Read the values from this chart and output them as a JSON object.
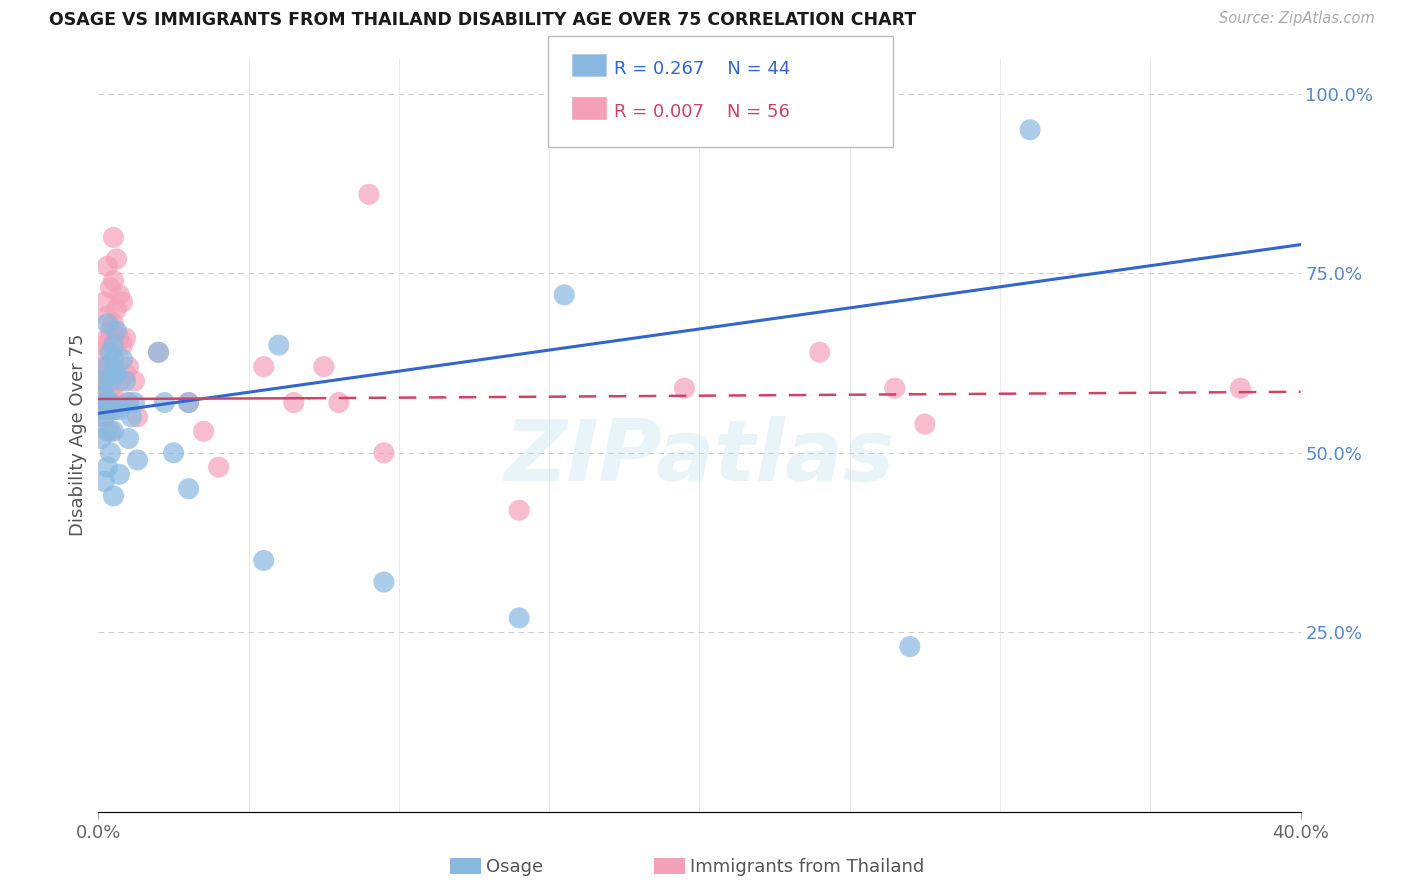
{
  "title": "OSAGE VS IMMIGRANTS FROM THAILAND DISABILITY AGE OVER 75 CORRELATION CHART",
  "source": "Source: ZipAtlas.com",
  "ylabel": "Disability Age Over 75",
  "xlim": [
    0.0,
    0.4
  ],
  "ylim": [
    0.0,
    1.05
  ],
  "ytick_right_vals": [
    0.25,
    0.5,
    0.75,
    1.0
  ],
  "ytick_right_labels": [
    "25.0%",
    "50.0%",
    "75.0%",
    "100.0%"
  ],
  "grid_color": "#cccccc",
  "background_color": "#ffffff",
  "legend_R_blue": "R = 0.267",
  "legend_N_blue": "N = 44",
  "legend_R_pink": "R = 0.007",
  "legend_N_pink": "N = 56",
  "blue_color": "#88b8e0",
  "pink_color": "#f4a0b8",
  "trendline_blue_color": "#3366cc",
  "trendline_pink_color": "#cc4466",
  "watermark": "ZIPatlas",
  "osage_x": [
    0.001,
    0.001,
    0.002,
    0.002,
    0.002,
    0.002,
    0.003,
    0.003,
    0.003,
    0.003,
    0.003,
    0.004,
    0.004,
    0.004,
    0.004,
    0.005,
    0.005,
    0.005,
    0.005,
    0.005,
    0.005,
    0.006,
    0.006,
    0.007,
    0.007,
    0.008,
    0.009,
    0.01,
    0.01,
    0.011,
    0.012,
    0.013,
    0.02,
    0.022,
    0.025,
    0.03,
    0.03,
    0.055,
    0.06,
    0.095,
    0.14,
    0.155,
    0.27,
    0.31
  ],
  "osage_y": [
    0.56,
    0.52,
    0.58,
    0.55,
    0.6,
    0.46,
    0.62,
    0.57,
    0.53,
    0.48,
    0.68,
    0.64,
    0.57,
    0.6,
    0.5,
    0.65,
    0.63,
    0.56,
    0.61,
    0.44,
    0.53,
    0.67,
    0.61,
    0.56,
    0.47,
    0.63,
    0.6,
    0.57,
    0.52,
    0.55,
    0.57,
    0.49,
    0.64,
    0.57,
    0.5,
    0.57,
    0.45,
    0.35,
    0.65,
    0.32,
    0.27,
    0.72,
    0.23,
    0.95
  ],
  "thailand_x": [
    0.001,
    0.001,
    0.001,
    0.001,
    0.001,
    0.002,
    0.002,
    0.002,
    0.002,
    0.002,
    0.003,
    0.003,
    0.003,
    0.003,
    0.003,
    0.004,
    0.004,
    0.004,
    0.004,
    0.004,
    0.005,
    0.005,
    0.005,
    0.005,
    0.005,
    0.005,
    0.006,
    0.006,
    0.006,
    0.007,
    0.007,
    0.007,
    0.008,
    0.008,
    0.009,
    0.009,
    0.01,
    0.01,
    0.012,
    0.013,
    0.02,
    0.03,
    0.035,
    0.04,
    0.055,
    0.065,
    0.075,
    0.08,
    0.09,
    0.095,
    0.14,
    0.195,
    0.24,
    0.265,
    0.275,
    0.38
  ],
  "thailand_y": [
    0.57,
    0.64,
    0.6,
    0.55,
    0.58,
    0.71,
    0.65,
    0.62,
    0.56,
    0.6,
    0.76,
    0.69,
    0.66,
    0.62,
    0.58,
    0.73,
    0.67,
    0.62,
    0.58,
    0.53,
    0.8,
    0.74,
    0.68,
    0.62,
    0.58,
    0.56,
    0.77,
    0.7,
    0.65,
    0.72,
    0.66,
    0.6,
    0.71,
    0.65,
    0.66,
    0.61,
    0.62,
    0.57,
    0.6,
    0.55,
    0.64,
    0.57,
    0.53,
    0.48,
    0.62,
    0.57,
    0.62,
    0.57,
    0.86,
    0.5,
    0.42,
    0.59,
    0.64,
    0.59,
    0.54,
    0.59
  ],
  "blue_trendline_x": [
    0.0,
    0.4
  ],
  "blue_trendline_y": [
    0.555,
    0.79
  ],
  "pink_trendline_x": [
    0.0,
    0.4
  ],
  "pink_trendline_y": [
    0.575,
    0.585
  ]
}
